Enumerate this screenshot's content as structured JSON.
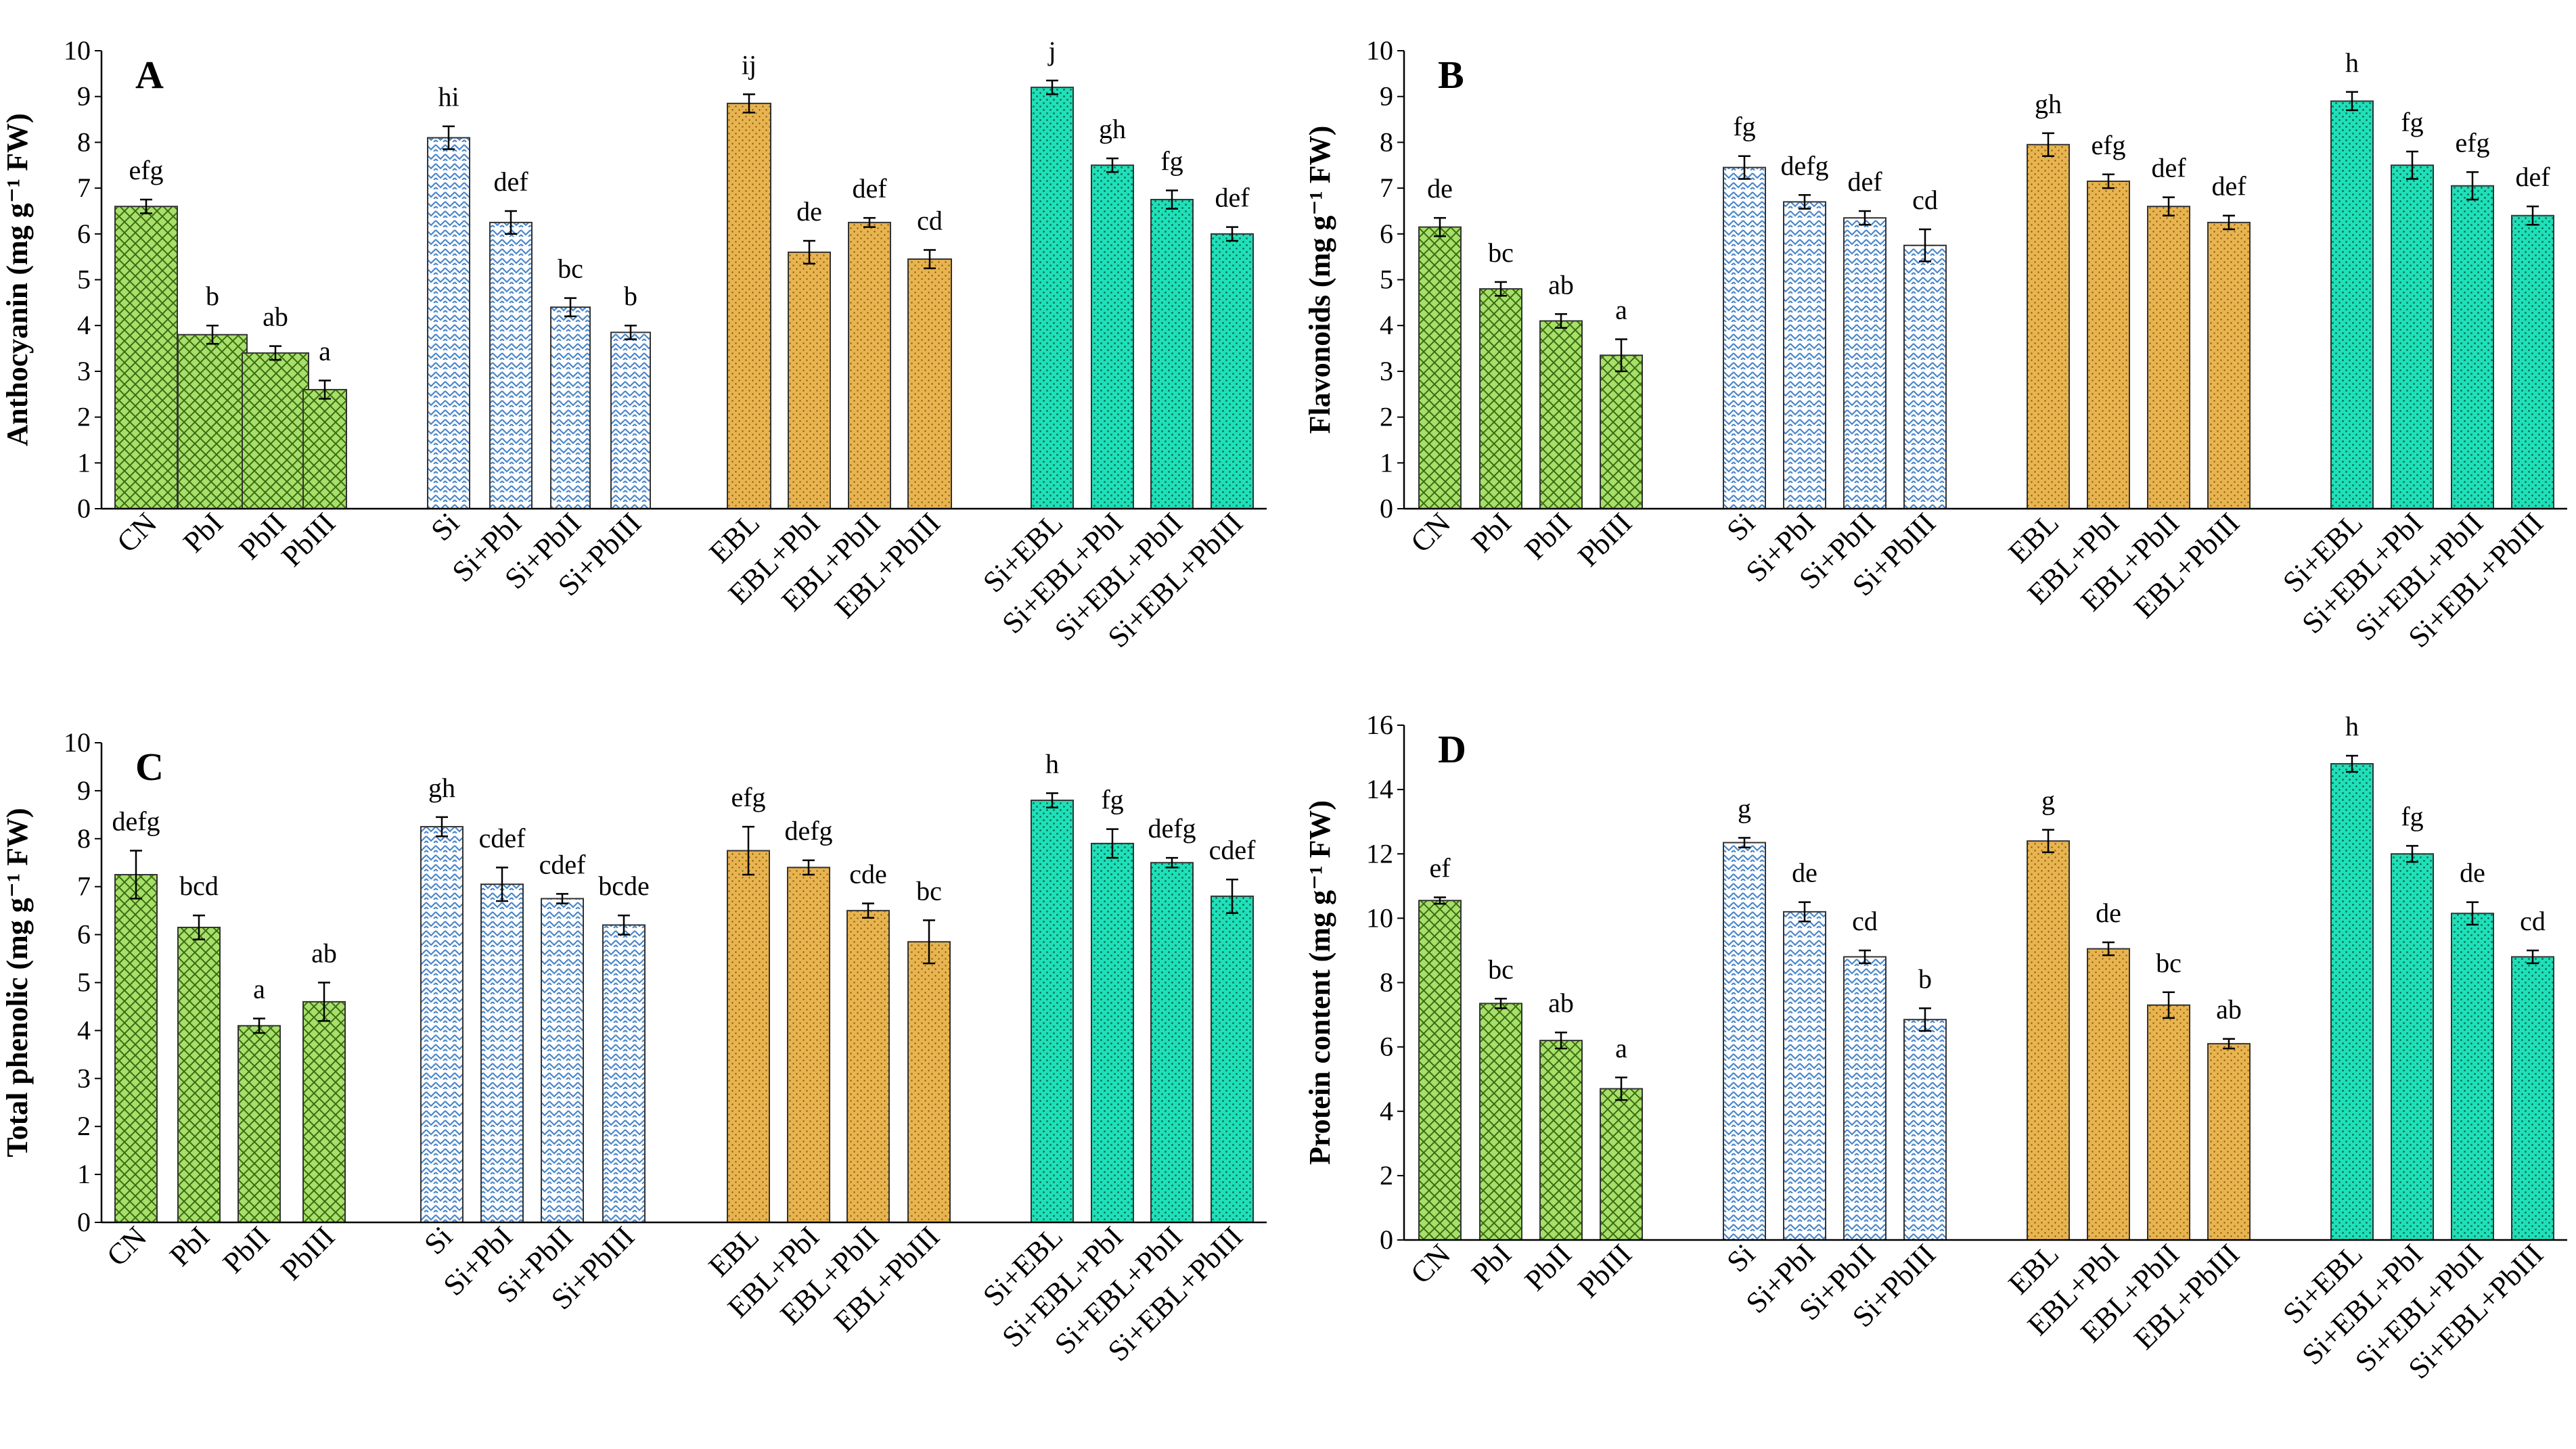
{
  "figure": {
    "description_text": ""
  },
  "colors": {
    "green": "#a6e06a",
    "blue": "#ffffff",
    "blue_pattern": "#4a86c8",
    "orange": "#e8b450",
    "teal": "#1fe0b8",
    "ink": "#000000"
  },
  "chart_data": [
    {
      "type": "bar",
      "panel": "A",
      "ylabel": "Anthocyanin (mg g⁻¹ FW)",
      "ylim": [
        0,
        10
      ],
      "yticks": [
        0,
        1,
        2,
        3,
        4,
        5,
        6,
        7,
        8,
        9,
        10
      ],
      "groups": [
        {
          "name": "control",
          "color": "green",
          "categories": [
            "CN",
            "PbI",
            "PbII",
            "PbIII"
          ],
          "values": [
            6.6,
            3.8,
            3.4,
            2.6
          ],
          "errors": [
            0.15,
            0.2,
            0.15,
            0.2
          ],
          "letters": [
            "efg",
            "b",
            "ab",
            "a"
          ]
        },
        {
          "name": "si",
          "color": "blue",
          "categories": [
            "Si",
            "Si+PbI",
            "Si+PbII",
            "Si+PbIII"
          ],
          "values": [
            8.1,
            6.25,
            4.4,
            3.85
          ],
          "errors": [
            0.25,
            0.25,
            0.2,
            0.15
          ],
          "letters": [
            "hi",
            "def",
            "bc",
            "b"
          ]
        },
        {
          "name": "ebl",
          "color": "orange",
          "categories": [
            "EBL",
            "EBL+PbI",
            "EBL+PbII",
            "EBL+PbIII"
          ],
          "values": [
            8.85,
            5.6,
            6.25,
            5.45
          ],
          "errors": [
            0.2,
            0.25,
            0.1,
            0.2
          ],
          "letters": [
            "ij",
            "de",
            "def",
            "cd"
          ]
        },
        {
          "name": "siebl",
          "color": "teal",
          "categories": [
            "Si+EBL",
            "Si+EBL+PbI",
            "Si+EBL+PbII",
            "Si+EBL+PbIII"
          ],
          "values": [
            9.2,
            7.5,
            6.75,
            6.0
          ],
          "errors": [
            0.15,
            0.15,
            0.2,
            0.15
          ],
          "letters": [
            "j",
            "gh",
            "fg",
            "def"
          ]
        }
      ]
    },
    {
      "type": "bar",
      "panel": "B",
      "ylabel": "Flavonoids (mg g⁻¹ FW)",
      "ylim": [
        0,
        10
      ],
      "yticks": [
        0,
        1,
        2,
        3,
        4,
        5,
        6,
        7,
        8,
        9,
        10
      ],
      "groups": [
        {
          "name": "control",
          "color": "green",
          "categories": [
            "CN",
            "PbI",
            "PbII",
            "PbIII"
          ],
          "values": [
            6.15,
            4.8,
            4.1,
            3.35
          ],
          "errors": [
            0.2,
            0.15,
            0.15,
            0.35
          ],
          "letters": [
            "de",
            "bc",
            "ab",
            "a"
          ]
        },
        {
          "name": "si",
          "color": "blue",
          "categories": [
            "Si",
            "Si+PbI",
            "Si+PbII",
            "Si+PbIII"
          ],
          "values": [
            7.45,
            6.7,
            6.35,
            5.75
          ],
          "errors": [
            0.25,
            0.15,
            0.15,
            0.35
          ],
          "letters": [
            "fg",
            "defg",
            "def",
            "cd"
          ]
        },
        {
          "name": "ebl",
          "color": "orange",
          "categories": [
            "EBL",
            "EBL+PbI",
            "EBL+PbII",
            "EBL+PbIII"
          ],
          "values": [
            7.95,
            7.15,
            6.6,
            6.25
          ],
          "errors": [
            0.25,
            0.15,
            0.2,
            0.15
          ],
          "letters": [
            "gh",
            "efg",
            "def",
            "def"
          ]
        },
        {
          "name": "siebl",
          "color": "teal",
          "categories": [
            "Si+EBL",
            "Si+EBL+PbI",
            "Si+EBL+PbII",
            "Si+EBL+PbIII"
          ],
          "values": [
            8.9,
            7.5,
            7.05,
            6.4
          ],
          "errors": [
            0.2,
            0.3,
            0.3,
            0.2
          ],
          "letters": [
            "h",
            "fg",
            "efg",
            "def"
          ]
        }
      ]
    },
    {
      "type": "bar",
      "panel": "C",
      "ylabel": "Total phenolic (mg g⁻¹ FW)",
      "ylim": [
        0,
        10
      ],
      "yticks": [
        0,
        1,
        2,
        3,
        4,
        5,
        6,
        7,
        8,
        9,
        10
      ],
      "groups": [
        {
          "name": "control",
          "color": "green",
          "categories": [
            "CN",
            "PbI",
            "PbII",
            "PbIII"
          ],
          "values": [
            7.25,
            6.15,
            4.1,
            4.6
          ],
          "errors": [
            0.5,
            0.25,
            0.15,
            0.4
          ],
          "letters": [
            "defg",
            "bcd",
            "a",
            "ab"
          ]
        },
        {
          "name": "si",
          "color": "blue",
          "categories": [
            "Si",
            "Si+PbI",
            "Si+PbII",
            "Si+PbIII"
          ],
          "values": [
            8.25,
            7.05,
            6.75,
            6.2
          ],
          "errors": [
            0.2,
            0.35,
            0.1,
            0.2
          ],
          "letters": [
            "gh",
            "cdef",
            "cdef",
            "bcde"
          ]
        },
        {
          "name": "ebl",
          "color": "orange",
          "categories": [
            "EBL",
            "EBL+PbI",
            "EBL+PbII",
            "EBL+PbIII"
          ],
          "values": [
            7.75,
            7.4,
            6.5,
            5.85
          ],
          "errors": [
            0.5,
            0.15,
            0.15,
            0.45
          ],
          "letters": [
            "efg",
            "defg",
            "cde",
            "bc"
          ]
        },
        {
          "name": "siebl",
          "color": "teal",
          "categories": [
            "Si+EBL",
            "Si+EBL+PbI",
            "Si+EBL+PbII",
            "Si+EBL+PbIII"
          ],
          "values": [
            8.8,
            7.9,
            7.5,
            6.8
          ],
          "errors": [
            0.15,
            0.3,
            0.1,
            0.35
          ],
          "letters": [
            "h",
            "fg",
            "defg",
            "cdef"
          ]
        }
      ]
    },
    {
      "type": "bar",
      "panel": "D",
      "ylabel": "Protein content (mg g⁻¹ FW)",
      "ylim": [
        0,
        16
      ],
      "yticks": [
        0,
        2,
        4,
        6,
        8,
        10,
        12,
        14,
        16
      ],
      "groups": [
        {
          "name": "control",
          "color": "green",
          "categories": [
            "CN",
            "PbI",
            "PbII",
            "PbIII"
          ],
          "values": [
            10.55,
            7.35,
            6.2,
            4.7
          ],
          "errors": [
            0.1,
            0.15,
            0.25,
            0.35
          ],
          "letters": [
            "ef",
            "bc",
            "ab",
            "a"
          ]
        },
        {
          "name": "si",
          "color": "blue",
          "categories": [
            "Si",
            "Si+PbI",
            "Si+PbII",
            "Si+PbIII"
          ],
          "values": [
            12.35,
            10.2,
            8.8,
            6.85
          ],
          "errors": [
            0.15,
            0.3,
            0.2,
            0.35
          ],
          "letters": [
            "g",
            "de",
            "cd",
            "b"
          ]
        },
        {
          "name": "ebl",
          "color": "orange",
          "categories": [
            "EBL",
            "EBL+PbI",
            "EBL+PbII",
            "EBL+PbIII"
          ],
          "values": [
            12.4,
            9.05,
            7.3,
            6.1
          ],
          "errors": [
            0.35,
            0.2,
            0.4,
            0.15
          ],
          "letters": [
            "g",
            "de",
            "bc",
            "ab"
          ]
        },
        {
          "name": "siebl",
          "color": "teal",
          "categories": [
            "Si+EBL",
            "Si+EBL+PbI",
            "Si+EBL+PbII",
            "Si+EBL+PbIII"
          ],
          "values": [
            14.8,
            12.0,
            10.15,
            8.8
          ],
          "errors": [
            0.25,
            0.25,
            0.35,
            0.2
          ],
          "letters": [
            "h",
            "fg",
            "de",
            "cd"
          ]
        }
      ]
    }
  ]
}
